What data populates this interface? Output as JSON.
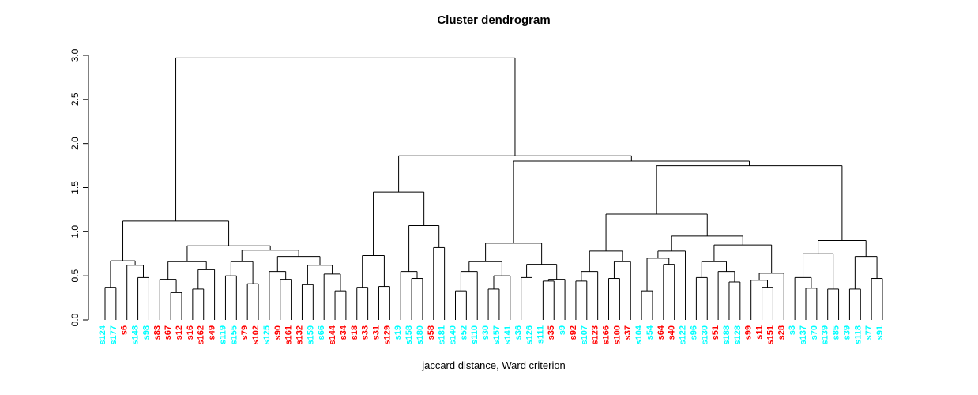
{
  "chart_data": {
    "type": "dendrogram",
    "title": "Cluster dendrogram",
    "xlabel": "jaccard distance, Ward criterion",
    "ylabel": "",
    "ylim": [
      0,
      3.0
    ],
    "ytick_labels": [
      "0.0",
      "0.5",
      "1.0",
      "1.5",
      "2.0",
      "2.5",
      "3.0"
    ],
    "yticks": [
      0.0,
      0.5,
      1.0,
      1.5,
      2.0,
      2.5,
      3.0
    ],
    "grid": false,
    "legend": "none",
    "line_color": "#000000",
    "background": "#FFFFFF",
    "label_colors": {
      "red": "#FF0000",
      "cyan": "#00FFFF"
    },
    "leaves": [
      {
        "label": "s124",
        "color": "cyan"
      },
      {
        "label": "s177",
        "color": "cyan"
      },
      {
        "label": "s6",
        "color": "red"
      },
      {
        "label": "s148",
        "color": "cyan"
      },
      {
        "label": "s98",
        "color": "cyan"
      },
      {
        "label": "s83",
        "color": "red"
      },
      {
        "label": "s67",
        "color": "red"
      },
      {
        "label": "s12",
        "color": "red"
      },
      {
        "label": "s16",
        "color": "red"
      },
      {
        "label": "s162",
        "color": "red"
      },
      {
        "label": "s49",
        "color": "red"
      },
      {
        "label": "s119",
        "color": "cyan"
      },
      {
        "label": "s155",
        "color": "cyan"
      },
      {
        "label": "s79",
        "color": "red"
      },
      {
        "label": "s102",
        "color": "red"
      },
      {
        "label": "s125",
        "color": "cyan"
      },
      {
        "label": "s90",
        "color": "red"
      },
      {
        "label": "s161",
        "color": "red"
      },
      {
        "label": "s132",
        "color": "red"
      },
      {
        "label": "s159",
        "color": "cyan"
      },
      {
        "label": "s66",
        "color": "cyan"
      },
      {
        "label": "s144",
        "color": "red"
      },
      {
        "label": "s34",
        "color": "red"
      },
      {
        "label": "s18",
        "color": "red"
      },
      {
        "label": "s33",
        "color": "red"
      },
      {
        "label": "s31",
        "color": "red"
      },
      {
        "label": "s129",
        "color": "red"
      },
      {
        "label": "s19",
        "color": "cyan"
      },
      {
        "label": "s158",
        "color": "cyan"
      },
      {
        "label": "s180",
        "color": "cyan"
      },
      {
        "label": "s58",
        "color": "red"
      },
      {
        "label": "s181",
        "color": "cyan"
      },
      {
        "label": "s140",
        "color": "cyan"
      },
      {
        "label": "s52",
        "color": "cyan"
      },
      {
        "label": "s110",
        "color": "cyan"
      },
      {
        "label": "s30",
        "color": "cyan"
      },
      {
        "label": "s157",
        "color": "cyan"
      },
      {
        "label": "s141",
        "color": "cyan"
      },
      {
        "label": "s36",
        "color": "cyan"
      },
      {
        "label": "s126",
        "color": "cyan"
      },
      {
        "label": "s111",
        "color": "cyan"
      },
      {
        "label": "s35",
        "color": "red"
      },
      {
        "label": "s9",
        "color": "cyan"
      },
      {
        "label": "s92",
        "color": "red"
      },
      {
        "label": "s107",
        "color": "cyan"
      },
      {
        "label": "s123",
        "color": "red"
      },
      {
        "label": "s166",
        "color": "red"
      },
      {
        "label": "s100",
        "color": "red"
      },
      {
        "label": "s37",
        "color": "red"
      },
      {
        "label": "s104",
        "color": "cyan"
      },
      {
        "label": "s54",
        "color": "cyan"
      },
      {
        "label": "s64",
        "color": "red"
      },
      {
        "label": "s40",
        "color": "red"
      },
      {
        "label": "s122",
        "color": "cyan"
      },
      {
        "label": "s96",
        "color": "cyan"
      },
      {
        "label": "s130",
        "color": "cyan"
      },
      {
        "label": "s51",
        "color": "red"
      },
      {
        "label": "s188",
        "color": "cyan"
      },
      {
        "label": "s128",
        "color": "cyan"
      },
      {
        "label": "s99",
        "color": "red"
      },
      {
        "label": "s11",
        "color": "red"
      },
      {
        "label": "s151",
        "color": "red"
      },
      {
        "label": "s28",
        "color": "red"
      },
      {
        "label": "s3",
        "color": "cyan"
      },
      {
        "label": "s137",
        "color": "cyan"
      },
      {
        "label": "s70",
        "color": "cyan"
      },
      {
        "label": "s139",
        "color": "cyan"
      },
      {
        "label": "s85",
        "color": "cyan"
      },
      {
        "label": "s39",
        "color": "cyan"
      },
      {
        "label": "s118",
        "color": "cyan"
      },
      {
        "label": "s77",
        "color": "cyan"
      },
      {
        "label": "s91",
        "color": "cyan"
      }
    ],
    "tree": [
      2.97,
      [
        1.12,
        [
          0.67,
          [
            0.37,
            "s124",
            "s177"
          ],
          [
            0.62,
            "s6",
            [
              0.48,
              "s148",
              "s98"
            ]
          ]
        ],
        [
          0.84,
          [
            0.66,
            [
              0.46,
              "s83",
              [
                0.31,
                "s67",
                "s12"
              ]
            ],
            [
              0.57,
              [
                0.35,
                "s16",
                "s162"
              ],
              "s49"
            ]
          ],
          [
            0.79,
            [
              0.66,
              [
                0.5,
                "s119",
                "s155"
              ],
              [
                0.41,
                "s79",
                "s102"
              ]
            ],
            [
              0.72,
              [
                0.55,
                "s125",
                [
                  0.46,
                  "s90",
                  "s161"
                ]
              ],
              [
                0.62,
                [
                  0.4,
                  "s132",
                  "s159"
                ],
                [
                  0.52,
                  "s66",
                  [
                    0.33,
                    "s144",
                    "s34"
                  ]
                ]
              ]
            ]
          ]
        ]
      ],
      [
        1.86,
        [
          1.45,
          [
            0.73,
            [
              0.37,
              "s18",
              "s33"
            ],
            [
              0.38,
              "s31",
              "s129"
            ]
          ],
          [
            1.07,
            [
              0.55,
              "s19",
              [
                0.47,
                "s158",
                "s180"
              ]
            ],
            [
              0.82,
              "s58",
              "s181"
            ]
          ]
        ],
        [
          1.8,
          [
            0.87,
            [
              0.66,
              [
                0.55,
                [
                  0.33,
                  "s140",
                  "s52"
                ],
                "s110"
              ],
              [
                0.5,
                [
                  0.35,
                  "s30",
                  "s157"
                ],
                "s141"
              ]
            ],
            [
              0.63,
              [
                0.48,
                "s36",
                "s126"
              ],
              [
                0.46,
                [
                  0.44,
                  "s111",
                  "s35"
                ],
                "s9"
              ]
            ]
          ],
          [
            1.75,
            [
              1.2,
              [
                0.78,
                [
                  0.55,
                  [
                    0.44,
                    "s92",
                    "s107"
                  ],
                  "s123"
                ],
                [
                  0.66,
                  [
                    0.47,
                    "s166",
                    "s100"
                  ],
                  "s37"
                ]
              ],
              [
                0.95,
                [
                  0.78,
                  [
                    0.7,
                    [
                      0.33,
                      "s104",
                      "s54"
                    ],
                    [
                      0.63,
                      "s64",
                      "s40"
                    ]
                  ],
                  "s122"
                ],
                [
                  0.85,
                  [
                    0.66,
                    [
                      0.48,
                      "s96",
                      "s130"
                    ],
                    [
                      0.55,
                      "s51",
                      [
                        0.43,
                        "s188",
                        "s128"
                      ]
                    ]
                  ],
                  [
                    0.53,
                    [
                      0.45,
                      "s99",
                      [
                        0.37,
                        "s11",
                        "s151"
                      ]
                    ],
                    "s28"
                  ]
                ]
              ]
            ],
            [
              0.9,
              [
                0.75,
                [
                  0.48,
                  "s3",
                  [
                    0.36,
                    "s137",
                    "s70"
                  ]
                ],
                [
                  0.35,
                  "s139",
                  "s85"
                ]
              ],
              [
                0.72,
                [
                  0.35,
                  "s39",
                  "s118"
                ],
                [
                  0.47,
                  "s77",
                  "s91"
                ]
              ]
            ]
          ]
        ]
      ]
    ]
  }
}
